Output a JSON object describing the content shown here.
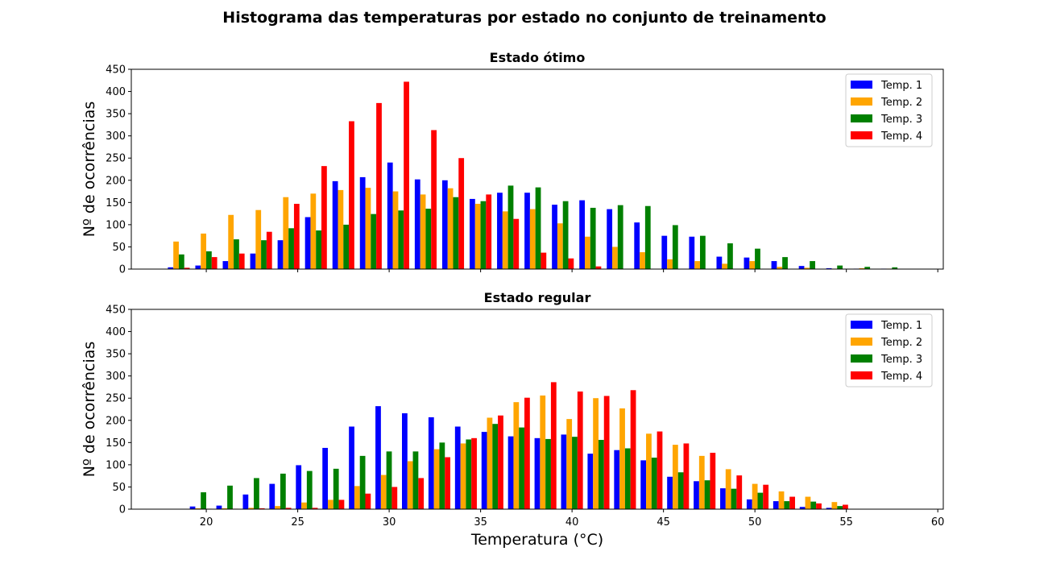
{
  "figure": {
    "suptitle": "Histograma das temperaturas por estado no conjunto de treinamento"
  },
  "chart_data": [
    {
      "type": "bar",
      "title": "Estado ótimo",
      "xlabel": "",
      "ylabel": "Nº de ocorrências",
      "xlim": [
        15.9,
        60.3
      ],
      "ylim": [
        0,
        450
      ],
      "xticks": [
        20,
        25,
        30,
        35,
        40,
        45,
        50,
        55,
        60
      ],
      "xtick_labels_visible": false,
      "yticks": [
        0,
        50,
        100,
        150,
        200,
        250,
        300,
        350,
        400,
        450
      ],
      "legend_position": "top-right",
      "bin_starts": [
        17.9,
        19.4,
        20.9,
        22.4,
        23.9,
        25.4,
        26.9,
        28.4,
        29.9,
        31.4,
        32.9,
        34.4,
        35.9,
        37.4,
        38.9,
        40.4,
        41.9,
        43.4,
        44.9,
        46.4,
        47.9,
        49.4,
        50.9,
        52.4,
        53.9,
        55.4,
        56.9
      ],
      "series": [
        {
          "name": "Temp. 1",
          "color": "#0000ff",
          "values": [
            4,
            8,
            18,
            35,
            65,
            117,
            198,
            207,
            240,
            202,
            200,
            158,
            172,
            172,
            145,
            155,
            135,
            105,
            75,
            73,
            28,
            26,
            18,
            7,
            2,
            1,
            1
          ]
        },
        {
          "name": "Temp. 2",
          "color": "#ffa500",
          "values": [
            62,
            80,
            122,
            133,
            162,
            170,
            178,
            183,
            175,
            168,
            182,
            147,
            130,
            135,
            103,
            73,
            50,
            38,
            22,
            18,
            12,
            18,
            5,
            3,
            1,
            2,
            1
          ]
        },
        {
          "name": "Temp. 3",
          "color": "#008000",
          "values": [
            33,
            40,
            67,
            65,
            92,
            87,
            100,
            124,
            132,
            136,
            162,
            153,
            188,
            184,
            153,
            138,
            144,
            142,
            99,
            75,
            58,
            46,
            27,
            18,
            8,
            5,
            4
          ]
        },
        {
          "name": "Temp. 4",
          "color": "#ff0000",
          "values": [
            3,
            27,
            35,
            84,
            147,
            232,
            333,
            374,
            422,
            313,
            250,
            168,
            113,
            37,
            24,
            6,
            0,
            0,
            0,
            0,
            0,
            0,
            0,
            0,
            0,
            0,
            0
          ]
        }
      ]
    },
    {
      "type": "bar",
      "title": "Estado regular",
      "xlabel": "Temperatura (°C)",
      "ylabel": "Nº de ocorrências",
      "xlim": [
        15.9,
        60.3
      ],
      "ylim": [
        0,
        450
      ],
      "xticks": [
        20,
        25,
        30,
        35,
        40,
        45,
        50,
        55,
        60
      ],
      "xtick_labels_visible": true,
      "yticks": [
        0,
        50,
        100,
        150,
        200,
        250,
        300,
        350,
        400,
        450
      ],
      "legend_position": "top-right",
      "bin_starts": [
        19.1,
        20.55,
        22.0,
        23.45,
        24.9,
        26.35,
        27.8,
        29.25,
        30.7,
        32.15,
        33.6,
        35.05,
        36.5,
        37.95,
        39.4,
        40.85,
        42.3,
        43.75,
        45.2,
        46.65,
        48.1,
        49.55,
        51.0,
        52.45,
        53.9
      ],
      "series": [
        {
          "name": "Temp. 1",
          "color": "#0000ff",
          "values": [
            6,
            8,
            33,
            57,
            99,
            138,
            186,
            232,
            216,
            207,
            186,
            174,
            164,
            160,
            168,
            125,
            133,
            110,
            73,
            63,
            47,
            22,
            18,
            5,
            3
          ]
        },
        {
          "name": "Temp. 2",
          "color": "#ffa500",
          "values": [
            2,
            2,
            3,
            7,
            15,
            21,
            52,
            77,
            108,
            135,
            148,
            206,
            241,
            256,
            203,
            250,
            227,
            170,
            145,
            120,
            90,
            57,
            40,
            28,
            16
          ]
        },
        {
          "name": "Temp. 3",
          "color": "#008000",
          "values": [
            38,
            53,
            70,
            80,
            86,
            91,
            120,
            130,
            130,
            150,
            157,
            192,
            184,
            158,
            163,
            156,
            137,
            116,
            83,
            65,
            46,
            37,
            18,
            17,
            7
          ]
        },
        {
          "name": "Temp. 4",
          "color": "#ff0000",
          "values": [
            1,
            1,
            2,
            3,
            3,
            21,
            35,
            50,
            70,
            117,
            160,
            211,
            251,
            286,
            265,
            255,
            268,
            175,
            148,
            127,
            76,
            55,
            28,
            13,
            10
          ]
        }
      ]
    }
  ]
}
